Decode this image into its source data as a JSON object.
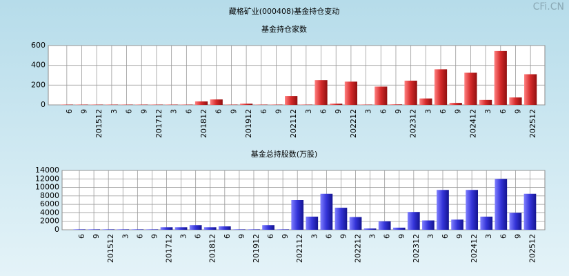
{
  "title": "藏格矿业(000408)基金持仓变动",
  "watermark": "CFi.CN",
  "chart_data": [
    {
      "type": "bar",
      "title": "基金持仓家数",
      "categories": [
        "6",
        "9",
        "201512",
        "3",
        "6",
        "9",
        "201712",
        "3",
        "6",
        "201812",
        "6",
        "9",
        "201912",
        "6",
        "9",
        "202112",
        "3",
        "6",
        "9",
        "202212",
        "3",
        "6",
        "9",
        "202312",
        "3",
        "6",
        "9",
        "202412",
        "3",
        "6",
        "9",
        "202512"
      ],
      "values": [
        3,
        3,
        3,
        3,
        3,
        3,
        3,
        3,
        3,
        35,
        55,
        3,
        12,
        3,
        3,
        90,
        3,
        250,
        12,
        235,
        3,
        185,
        5,
        245,
        65,
        360,
        20,
        325,
        50,
        545,
        75,
        310
      ],
      "color": "#d42a2a",
      "ylim": [
        0,
        600
      ],
      "yticks": [
        0,
        200,
        400,
        600
      ],
      "grid": true
    },
    {
      "type": "bar",
      "title": "基金总持股数(万股)",
      "categories": [
        "6",
        "9",
        "201512",
        "3",
        "6",
        "9",
        "201712",
        "3",
        "6",
        "201812",
        "6",
        "9",
        "201912",
        "6",
        "9",
        "202112",
        "3",
        "6",
        "9",
        "202212",
        "3",
        "6",
        "9",
        "202312",
        "3",
        "6",
        "9",
        "202412",
        "3",
        "6",
        "9",
        "202512"
      ],
      "values": [
        100,
        100,
        100,
        100,
        100,
        100,
        600,
        600,
        1100,
        600,
        800,
        100,
        100,
        1100,
        100,
        7000,
        3100,
        8500,
        5200,
        3000,
        300,
        2000,
        500,
        4200,
        2200,
        9400,
        2400,
        9400,
        3100,
        12000,
        4000,
        8500
      ],
      "color": "#3434d8",
      "ylim": [
        0,
        14000
      ],
      "yticks": [
        0,
        2000,
        4000,
        6000,
        8000,
        10000,
        12000,
        14000
      ],
      "grid": true
    }
  ]
}
